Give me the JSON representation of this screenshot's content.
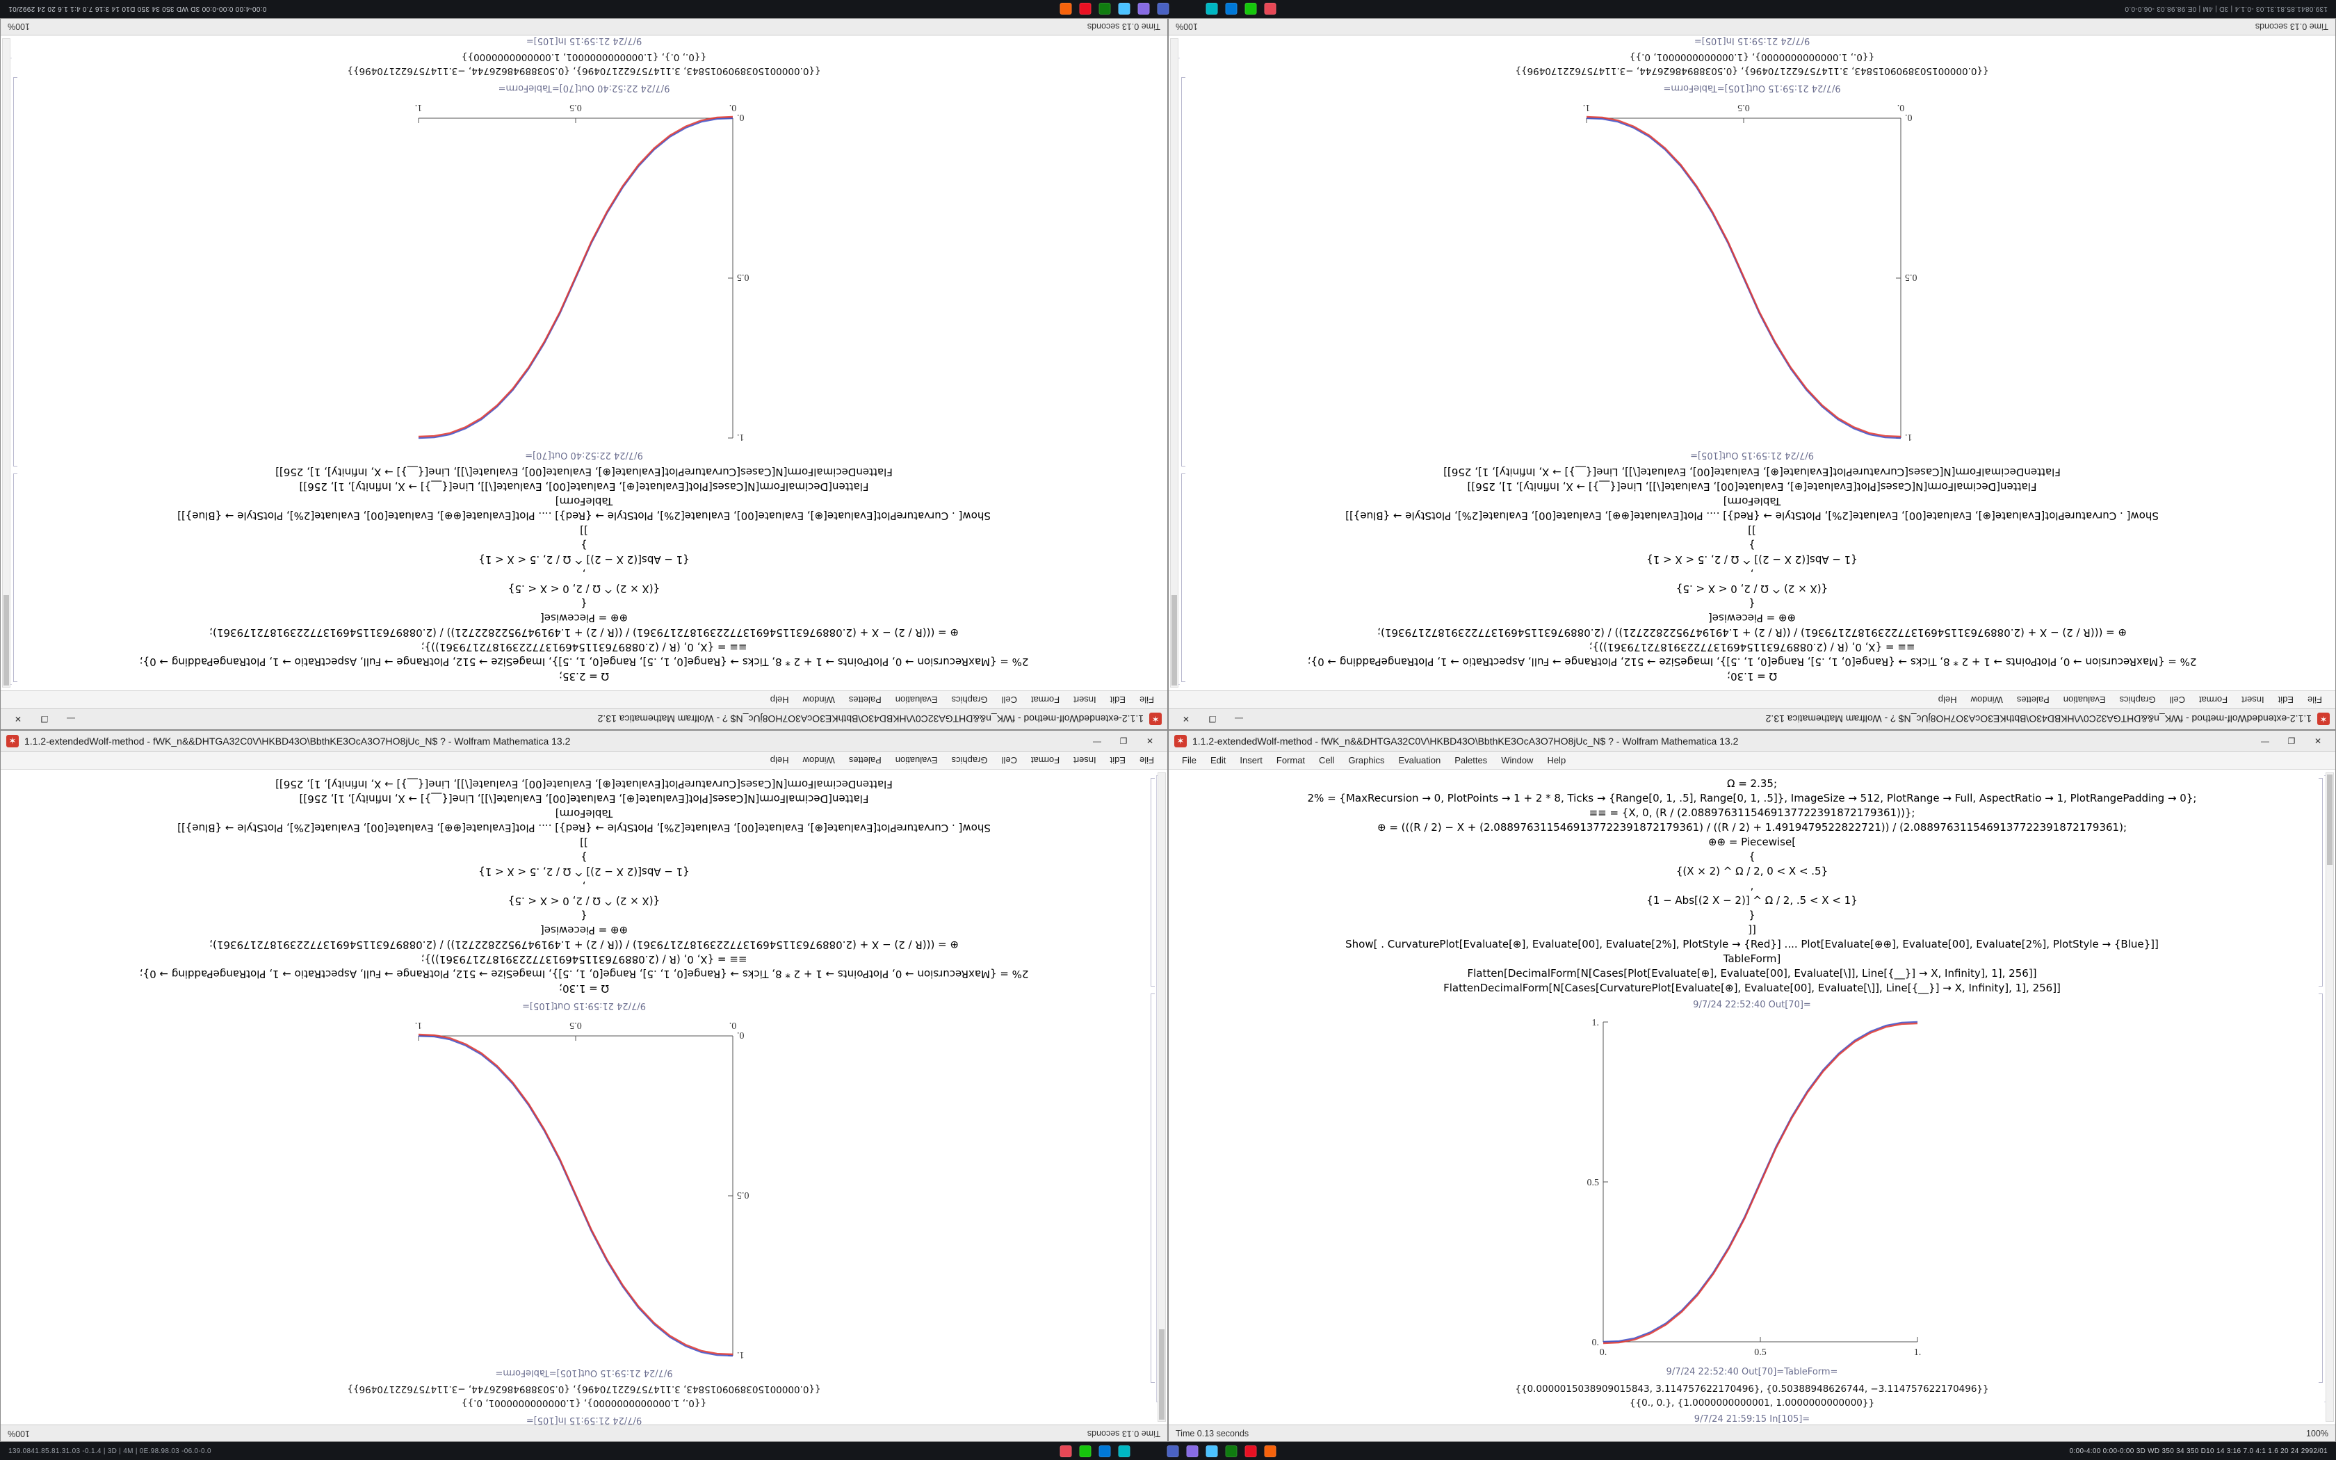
{
  "taskbar": {
    "left_text": "139.0841.85.81.31.03 -0.1.4 | 3D | 4M | 0E.98.98.03 -06.0-0.0",
    "right_text": "0:00-4:00  0:00-0:00  3D WD 350 34 350 D10 14 3:16  7.0 4:1 1.6  20 24  2992/01",
    "icons": [
      {
        "name": "taskbar-app-red-icon",
        "color": "#e74856"
      },
      {
        "name": "taskbar-app-green-icon",
        "color": "#16c60c"
      },
      {
        "name": "taskbar-app-blue-icon",
        "color": "#0078d7"
      },
      {
        "name": "taskbar-app-teal-icon",
        "color": "#00b7c3"
      },
      {
        "name": "taskbar-app-navy-icon",
        "color": "#4a62c3"
      },
      {
        "name": "taskbar-app-purple-icon",
        "color": "#886ce4"
      },
      {
        "name": "taskbar-app-skyblue-icon",
        "color": "#4cc2ff"
      },
      {
        "name": "taskbar-app-darkgreen-icon",
        "color": "#107c10"
      },
      {
        "name": "taskbar-app-red2-icon",
        "color": "#e81123"
      },
      {
        "name": "taskbar-app-orange-icon",
        "color": "#f7630c"
      }
    ]
  },
  "window": {
    "title": "1.1.2-extendedWolf-method - fWK_n&&DHTGA32C0V\\HKBD43O\\BbthKE3OcA3O7HO8jUc_N$ ?  -  Wolfram Mathematica 13.2",
    "menu": [
      "File",
      "Edit",
      "Insert",
      "Format",
      "Cell",
      "Graphics",
      "Evaluation",
      "Palettes",
      "Window",
      "Help"
    ],
    "status_left": "Time 0.13 seconds",
    "status_right": "100%",
    "controls": {
      "minimize": "—",
      "maximize": "❐",
      "close": "✕"
    }
  },
  "notebook_a": {
    "cells": [
      "Ω = 2.35;",
      "2% = {MaxRecursion → 0, PlotPoints → 1 + 2 * 8, Ticks → {Range[0, 1, .5], Range[0, 1, .5]}, ImageSize → 512, PlotRange → Full, AspectRatio → 1, PlotRangePadding → 0};",
      "≡≡ = {X, 0, (R / (2.0889763115469137722391872179361))};",
      "⊕ = (((R / 2) − X + (2.0889763115469137722391872179361) / ((R / 2) + 1.4919479522822721)) / (2.0889763115469137722391872179361);",
      "⊕⊕ = Piecewise[",
      "{",
      "{(X × 2) ^ Ω / 2,  0 < X < .5}",
      ",",
      "{1 − Abs[(2 X − 2)] ^ Ω / 2,  .5 < X < 1}",
      "}",
      "]]",
      "Show[ . CurvaturePlot[Evaluate[⊕], Evaluate[00], Evaluate[2%], PlotStyle → {Red}] .... Plot[Evaluate[⊕⊕], Evaluate[00], Evaluate[2%], PlotStyle → {Blue}]]",
      "TableForm]",
      "Flatten[DecimalForm[N[Cases[Plot[Evaluate[⊕], Evaluate[00], Evaluate[\\]], Line[{__}] → X, Infinity], 1], 256]]",
      "FlattenDecimalForm[N[Cases[CurvaturePlot[Evaluate[⊕], Evaluate[00], Evaluate[\\]], Line[{__}] → X, Infinity], 1], 256]]"
    ],
    "out_label": "9/7/24 22:52:40 Out[70]=",
    "out_label_table": "9/7/24 22:52:40 Out[70]=TableForm=",
    "result_rows": [
      "{{0.0000015038909015843, 3.114757622170496}, {0.50388948626744, −3.114757622170496}}",
      "{{0., 0.}, {1.0000000000001, 1.0000000000000}}"
    ],
    "in_label": "9/7/24 21:59:15 In[105]="
  },
  "notebook_b": {
    "cells": [
      "Ω = 1.30;",
      "2% = {MaxRecursion → 0, PlotPoints → 1 + 2 * 8, Ticks → {Range[0, 1, .5], Range[0, 1, .5]}, ImageSize → 512, PlotRange → Full, AspectRatio → 1, PlotRangePadding → 0};",
      "≡≡ = {X, 0, (R / (2.0889763115469137722391872179361))};",
      "⊕ = (((R / 2) − X + (2.0889763115469137722391872179361) / ((R / 2) + 1.4919479522822721)) / (2.0889763115469137722391872179361);",
      "⊕⊕ = Piecewise[",
      "{",
      "{(X × 2) ^ Ω / 2,  0 < X < .5}",
      ",",
      "{1 − Abs[(2 X − 2)] ^ Ω / 2,  .5 < X < 1}",
      "}",
      "]]",
      "Show[ . CurvaturePlot[Evaluate[⊕], Evaluate[00], Evaluate[2%], PlotStyle → {Red}] .... Plot[Evaluate[⊕⊕], Evaluate[00], Evaluate[2%], PlotStyle → {Blue}]]",
      "TableForm]",
      "Flatten[DecimalForm[N[Cases[Plot[Evaluate[⊕], Evaluate[00], Evaluate[\\]], Line[{__}] → X, Infinity], 1], 256]]",
      "FlattenDecimalForm[N[Cases[CurvaturePlot[Evaluate[⊕], Evaluate[00], Evaluate[\\]], Line[{__}] → X, Infinity], 1], 256]]"
    ],
    "out_label": "9/7/24 21:59:15 Out[105]=",
    "out_label_table": "9/7/24 21:59:15 Out[105]=TableForm=",
    "result_rows": [
      "{{0.0000015038909015843, 3.114757622170496}, {0.50388948626744, −3.114757622170496}}",
      "{{0., 1.0000000000000}, {1.0000000000001, 0.}}"
    ],
    "in_label": "9/7/24 21:59:15 In[105]="
  },
  "chart_data": [
    {
      "type": "line",
      "title": "Out[70] — ascending sigmoid plot (Red CurvaturePlot over Blue Plot)",
      "xlabel": "",
      "ylabel": "",
      "xlim": [
        0,
        1
      ],
      "ylim": [
        0,
        1
      ],
      "x_ticks": [
        0,
        0.5,
        1
      ],
      "y_ticks": [
        0,
        0.5,
        1
      ],
      "x_tick_labels": [
        "0.",
        "0.5",
        "1."
      ],
      "y_tick_labels": [
        "0.",
        "0.5",
        "1."
      ],
      "grid": false,
      "legend": "none",
      "x": [
        0,
        0.05,
        0.1,
        0.15,
        0.2,
        0.25,
        0.3,
        0.35,
        0.4,
        0.45,
        0.5,
        0.55,
        0.6,
        0.65,
        0.7,
        0.75,
        0.8,
        0.85,
        0.9,
        0.95,
        1
      ],
      "series": [
        {
          "name": "Plot (Blue)",
          "color": "#3b4cc8",
          "y": [
            0,
            0.002,
            0.011,
            0.03,
            0.058,
            0.098,
            0.15,
            0.216,
            0.296,
            0.39,
            0.5,
            0.61,
            0.704,
            0.784,
            0.85,
            0.902,
            0.942,
            0.97,
            0.989,
            0.998,
            1
          ]
        },
        {
          "name": "CurvaturePlot (Red)",
          "color": "#e0362e",
          "y": [
            0,
            0.002,
            0.011,
            0.03,
            0.058,
            0.098,
            0.15,
            0.216,
            0.296,
            0.39,
            0.5,
            0.61,
            0.704,
            0.784,
            0.85,
            0.902,
            0.942,
            0.97,
            0.989,
            0.998,
            1
          ]
        }
      ]
    },
    {
      "type": "line",
      "title": "Out[105] — descending sigmoid plot (Red CurvaturePlot over Blue Plot)",
      "xlabel": "",
      "ylabel": "",
      "xlim": [
        0,
        1
      ],
      "ylim": [
        0,
        1
      ],
      "x_ticks": [
        0,
        0.5,
        1
      ],
      "y_ticks": [
        0,
        0.5,
        1
      ],
      "x_tick_labels": [
        "0.",
        "0.5",
        "1."
      ],
      "y_tick_labels": [
        "0.",
        "0.5",
        "1."
      ],
      "grid": false,
      "legend": "none",
      "x": [
        0,
        0.05,
        0.1,
        0.15,
        0.2,
        0.25,
        0.3,
        0.35,
        0.4,
        0.45,
        0.5,
        0.55,
        0.6,
        0.65,
        0.7,
        0.75,
        0.8,
        0.85,
        0.9,
        0.95,
        1
      ],
      "series": [
        {
          "name": "Plot (Blue)",
          "color": "#3b4cc8",
          "y": [
            1,
            0.998,
            0.989,
            0.97,
            0.942,
            0.902,
            0.85,
            0.784,
            0.704,
            0.61,
            0.5,
            0.39,
            0.296,
            0.216,
            0.15,
            0.098,
            0.058,
            0.03,
            0.011,
            0.002,
            0
          ]
        },
        {
          "name": "CurvaturePlot (Red)",
          "color": "#e0362e",
          "y": [
            1,
            0.998,
            0.989,
            0.97,
            0.942,
            0.902,
            0.85,
            0.784,
            0.704,
            0.61,
            0.5,
            0.39,
            0.296,
            0.216,
            0.15,
            0.098,
            0.058,
            0.03,
            0.011,
            0.002,
            0
          ]
        }
      ]
    }
  ]
}
